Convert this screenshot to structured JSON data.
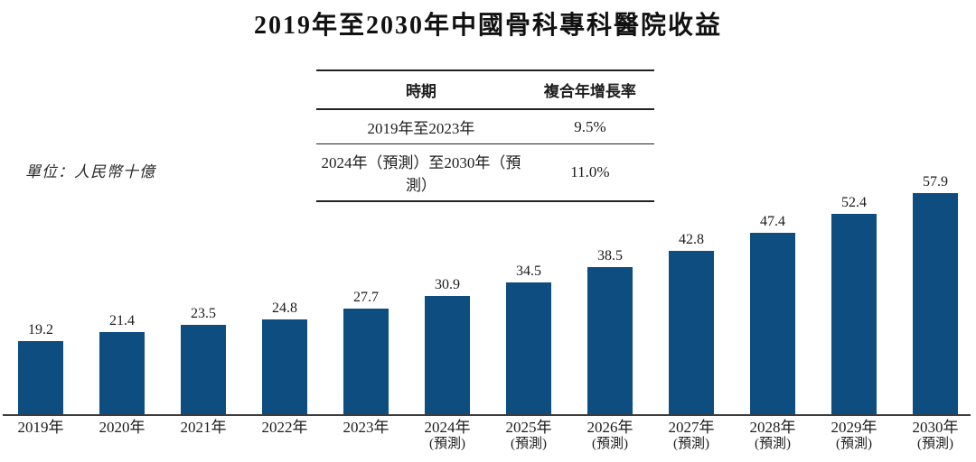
{
  "title": "2019年至2030年中國骨科專科醫院收益",
  "unit_label": "單位：人民幣十億",
  "cagr_table": {
    "headers": {
      "period": "時期",
      "rate": "複合年增長率"
    },
    "rows": [
      {
        "period": "2019年至2023年",
        "rate": "9.5%"
      },
      {
        "period": "2024年（預測）至2030年（預測）",
        "rate": "11.0%"
      }
    ]
  },
  "chart_data": {
    "type": "bar",
    "title": "2019年至2030年中國骨科專科醫院收益",
    "categories": [
      "2019年",
      "2020年",
      "2021年",
      "2022年",
      "2023年",
      "2024年",
      "2025年",
      "2026年",
      "2027年",
      "2028年",
      "2029年",
      "2030年"
    ],
    "category_sublabels": [
      "",
      "",
      "",
      "",
      "",
      "(預測)",
      "(預測)",
      "(預測)",
      "(預測)",
      "(預測)",
      "(預測)",
      "(預測)"
    ],
    "values": [
      19.2,
      21.4,
      23.5,
      24.8,
      27.7,
      30.9,
      34.5,
      38.5,
      42.8,
      47.4,
      52.4,
      57.9
    ],
    "value_labels": [
      "19.2",
      "21.4",
      "23.5",
      "24.8",
      "27.7",
      "30.9",
      "34.5",
      "38.5",
      "42.8",
      "47.4",
      "52.4",
      "57.9"
    ],
    "xlabel": "",
    "ylabel": "人民幣十億",
    "ylim": [
      0,
      60
    ],
    "grid": false,
    "legend": "none",
    "data_labels": "above-bars"
  },
  "colors": {
    "bar_fill": "#0e4d80",
    "axis_line": "#3c3c3c",
    "text": "#1c1c1c",
    "background": "#ffffff"
  }
}
